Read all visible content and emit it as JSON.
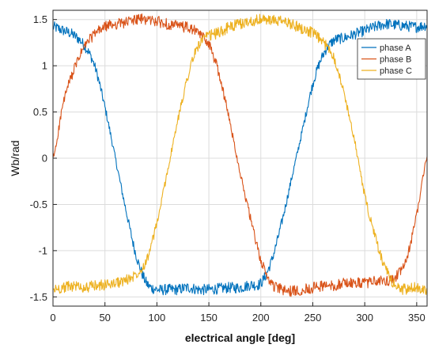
{
  "chart_data": {
    "type": "line",
    "title": "",
    "xlabel": "electrical angle [deg]",
    "ylabel": "Wb/rad",
    "xlim": [
      0,
      360
    ],
    "ylim": [
      -1.6,
      1.6
    ],
    "xticks": [
      0,
      50,
      100,
      150,
      200,
      250,
      300,
      350
    ],
    "yticks": [
      -1.5,
      -1,
      -0.5,
      0,
      0.5,
      1,
      1.5
    ],
    "xtick_labels": [
      "0",
      "50",
      "100",
      "150",
      "200",
      "250",
      "300",
      "350"
    ],
    "ytick_labels": [
      "-1.5",
      "-1",
      "-0.5",
      "0",
      "0.5",
      "1",
      "1.5"
    ],
    "grid": true,
    "legend_position": "top-right",
    "x": [
      0,
      10,
      20,
      30,
      40,
      50,
      60,
      70,
      80,
      90,
      100,
      110,
      120,
      130,
      140,
      150,
      160,
      170,
      180,
      190,
      200,
      210,
      220,
      230,
      240,
      250,
      260,
      270,
      280,
      290,
      300,
      310,
      320,
      330,
      340,
      350,
      360
    ],
    "series": [
      {
        "name": "phase A",
        "color": "#0072BD",
        "values": [
          1.42,
          1.38,
          1.33,
          1.22,
          1.0,
          0.55,
          0.0,
          -0.55,
          -1.05,
          -1.35,
          -1.42,
          -1.42,
          -1.42,
          -1.4,
          -1.42,
          -1.42,
          -1.41,
          -1.4,
          -1.4,
          -1.37,
          -1.35,
          -1.12,
          -0.7,
          -0.2,
          0.3,
          0.8,
          1.12,
          1.27,
          1.3,
          1.34,
          1.38,
          1.42,
          1.45,
          1.44,
          1.43,
          1.42,
          1.44
        ]
      },
      {
        "name": "phase B",
        "color": "#D95319",
        "values": [
          0.0,
          0.6,
          0.95,
          1.2,
          1.34,
          1.42,
          1.45,
          1.47,
          1.5,
          1.5,
          1.48,
          1.45,
          1.43,
          1.41,
          1.35,
          1.23,
          0.9,
          0.4,
          -0.15,
          -0.65,
          -1.1,
          -1.35,
          -1.42,
          -1.44,
          -1.42,
          -1.4,
          -1.38,
          -1.38,
          -1.35,
          -1.35,
          -1.35,
          -1.33,
          -1.33,
          -1.28,
          -1.1,
          -0.6,
          0.0
        ]
      },
      {
        "name": "phase C",
        "color": "#EDB120",
        "values": [
          -1.42,
          -1.4,
          -1.38,
          -1.4,
          -1.38,
          -1.37,
          -1.35,
          -1.32,
          -1.25,
          -1.1,
          -0.7,
          -0.15,
          0.4,
          0.9,
          1.22,
          1.32,
          1.36,
          1.42,
          1.45,
          1.48,
          1.5,
          1.49,
          1.48,
          1.45,
          1.4,
          1.35,
          1.25,
          1.1,
          0.7,
          0.2,
          -0.4,
          -0.85,
          -1.2,
          -1.38,
          -1.42,
          -1.4,
          -1.42
        ]
      }
    ]
  }
}
